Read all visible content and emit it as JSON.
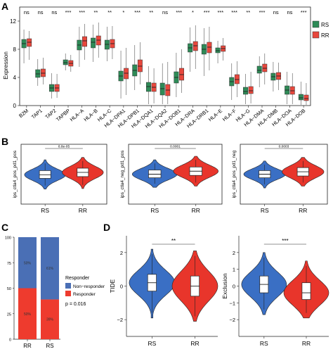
{
  "panels": {
    "A": "A",
    "B": "B",
    "C": "C",
    "D": "D"
  },
  "colors": {
    "rs_box": "#2e8b57",
    "rr_box": "#e8473c",
    "rs_violin": "#3a6fc4",
    "rr_violin": "#e8352b",
    "non_responder": "#4a6fb5",
    "responder": "#ee3b2e"
  },
  "chart_data": [
    {
      "id": "A",
      "type": "box",
      "title": "",
      "xlabel": "",
      "ylabel": "Expression",
      "ylim": [
        0,
        14
      ],
      "yticks": [
        "0",
        "4",
        "8",
        "12"
      ],
      "ytick_values": [
        0,
        4,
        8,
        12
      ],
      "legend": {
        "position": "right",
        "entries": [
          "RS",
          "RR"
        ]
      },
      "categories": [
        "B2M",
        "TAP1",
        "TAP2",
        "TAPBP",
        "HLA−A",
        "HLA−B",
        "HLA−C",
        "HLA−DPA1",
        "HLA−DPB1",
        "HLA−DQA1",
        "HLA−DQA2",
        "HLA−DOB1",
        "HLA−DRA",
        "HLA−DRB1",
        "HLA−E",
        "HLA−F",
        "HLA−G",
        "HLA−DMA",
        "HLA−DMB",
        "HLA−DOA",
        "HLA−DOB"
      ],
      "significance": [
        "ns",
        "ns",
        "ns",
        "***",
        "***",
        "**",
        "**",
        "*",
        "***",
        "**",
        "ns",
        "***",
        "*",
        "***",
        "***",
        "***",
        "**",
        "***",
        "ns",
        "ns",
        "***"
      ],
      "series": [
        {
          "name": "RS",
          "stats": [
            [
              6.0,
              8.2,
              8.8,
              9.4,
              10.8
            ],
            [
              2.8,
              4.0,
              4.5,
              5.1,
              6.6
            ],
            [
              1.0,
              2.0,
              2.5,
              3.0,
              4.6
            ],
            [
              5.0,
              5.8,
              6.1,
              6.5,
              7.4
            ],
            [
              5.5,
              7.9,
              8.6,
              9.3,
              11.2
            ],
            [
              6.2,
              8.2,
              9.0,
              9.6,
              11.5
            ],
            [
              6.3,
              8.0,
              8.7,
              9.3,
              11.2
            ],
            [
              1.0,
              3.5,
              4.2,
              4.9,
              7.8
            ],
            [
              2.2,
              4.2,
              5.0,
              5.8,
              8.6
            ],
            [
              0.2,
              2.0,
              2.7,
              3.3,
              5.6
            ],
            [
              0.2,
              1.5,
              2.4,
              3.2,
              6.0
            ],
            [
              1.2,
              3.2,
              4.0,
              4.8,
              7.5
            ],
            [
              4.8,
              7.6,
              8.2,
              8.8,
              11.1
            ],
            [
              4.2,
              7.3,
              8.0,
              8.7,
              11.0
            ],
            [
              6.0,
              7.5,
              7.8,
              8.2,
              9.2
            ],
            [
              0.8,
              2.8,
              3.4,
              4.0,
              6.0
            ],
            [
              0.2,
              1.6,
              2.0,
              2.6,
              4.5
            ],
            [
              2.6,
              4.6,
              5.0,
              5.6,
              7.0
            ],
            [
              2.0,
              3.6,
              4.1,
              4.6,
              6.2
            ],
            [
              0.2,
              1.6,
              2.2,
              2.8,
              4.8
            ],
            [
              0.1,
              0.8,
              1.1,
              1.6,
              3.4
            ]
          ]
        },
        {
          "name": "RR",
          "stats": [
            [
              6.5,
              8.4,
              9.0,
              9.5,
              10.6
            ],
            [
              3.0,
              4.1,
              4.6,
              5.2,
              6.8
            ],
            [
              1.1,
              2.0,
              2.5,
              3.0,
              4.5
            ],
            [
              4.8,
              5.6,
              6.0,
              6.4,
              7.2
            ],
            [
              6.5,
              8.4,
              9.2,
              9.8,
              11.6
            ],
            [
              6.8,
              8.6,
              9.3,
              9.9,
              11.8
            ],
            [
              6.6,
              8.2,
              8.8,
              9.4,
              11.3
            ],
            [
              1.5,
              3.8,
              4.6,
              5.3,
              8.2
            ],
            [
              3.0,
              4.8,
              5.6,
              6.5,
              9.0
            ],
            [
              0.3,
              2.0,
              2.6,
              3.2,
              5.3
            ],
            [
              0.2,
              1.4,
              2.2,
              3.0,
              6.2
            ],
            [
              1.8,
              3.6,
              4.4,
              5.3,
              8.0
            ],
            [
              5.2,
              7.8,
              8.5,
              9.1,
              11.4
            ],
            [
              5.0,
              7.5,
              8.3,
              9.0,
              11.2
            ],
            [
              6.4,
              7.7,
              8.1,
              8.5,
              9.6
            ],
            [
              1.2,
              3.1,
              3.7,
              4.4,
              6.3
            ],
            [
              0.3,
              1.7,
              2.1,
              2.7,
              4.8
            ],
            [
              3.0,
              4.8,
              5.3,
              5.9,
              7.4
            ],
            [
              2.2,
              3.7,
              4.2,
              4.7,
              6.1
            ],
            [
              0.2,
              1.6,
              2.1,
              2.7,
              4.6
            ],
            [
              0.1,
              0.7,
              1.0,
              1.5,
              3.2
            ]
          ]
        }
      ]
    },
    {
      "id": "B",
      "type": "violin",
      "title": "",
      "subplots": [
        {
          "ylabel": "ips_ctla4_pos_pd1_pos",
          "pvalue": "8.8e-05",
          "ylim": [
            0,
            10
          ],
          "groups": [
            {
              "name": "RS",
              "stats": [
                2.5,
                4.3,
                4.9,
                5.6,
                7.4
              ]
            },
            {
              "name": "RR",
              "stats": [
                2.6,
                4.6,
                5.3,
                6.0,
                7.8
              ]
            }
          ]
        },
        {
          "ylabel": "ips_ctla4_neg_pd1_pos",
          "pvalue": "0.0001",
          "ylim": [
            0,
            10
          ],
          "groups": [
            {
              "name": "RS",
              "stats": [
                2.8,
                4.4,
                5.0,
                5.7,
                7.4
              ]
            },
            {
              "name": "RR",
              "stats": [
                3.0,
                4.8,
                5.5,
                6.2,
                8.0
              ]
            }
          ]
        },
        {
          "ylabel": "ips_ctla4_pos_pd1_neg",
          "pvalue": "0.0003",
          "ylim": [
            0,
            10
          ],
          "groups": [
            {
              "name": "RS",
              "stats": [
                2.7,
                4.4,
                5.0,
                5.6,
                7.2
              ]
            },
            {
              "name": "RR",
              "stats": [
                3.0,
                4.7,
                5.4,
                6.1,
                7.8
              ]
            }
          ]
        }
      ]
    },
    {
      "id": "C",
      "type": "bar",
      "stacked": true,
      "title": "",
      "xlabel": "",
      "ylabel": "",
      "ylim": [
        0,
        100
      ],
      "yticks": [
        "0",
        "25",
        "50",
        "75",
        "100"
      ],
      "ytick_values": [
        0,
        25,
        50,
        75,
        100
      ],
      "categories": [
        "RR",
        "RS"
      ],
      "legend": {
        "title": "Responder",
        "position": "right",
        "entries": [
          "Non−responder",
          "Responder"
        ]
      },
      "pvalue_text": "p = 0.016",
      "series": [
        {
          "name": "Responder",
          "values": [
            50,
            39
          ],
          "labels": [
            "50%",
            "39%"
          ]
        },
        {
          "name": "Non−responder",
          "values": [
            50,
            61
          ],
          "labels": [
            "50%",
            "61%"
          ]
        }
      ]
    },
    {
      "id": "D",
      "type": "violin",
      "title": "",
      "subplots": [
        {
          "ylabel": "TIDE",
          "significance": "**",
          "ylim": [
            -3,
            3
          ],
          "yticks": [
            "−2",
            "0",
            "2"
          ],
          "ytick_values": [
            -2,
            0,
            2
          ],
          "groups": [
            {
              "name": "RS",
              "stats": [
                -1.9,
                -0.3,
                0.2,
                0.7,
                2.2
              ]
            },
            {
              "name": "RR",
              "stats": [
                -2.1,
                -0.6,
                0.0,
                0.6,
                2.1
              ]
            }
          ]
        },
        {
          "ylabel": "Exclusion",
          "significance": "***",
          "ylim": [
            -3,
            3
          ],
          "yticks": [
            "−2",
            "−1",
            "0",
            "1",
            "2"
          ],
          "ytick_values": [
            -2,
            -1,
            0,
            1,
            2
          ],
          "groups": [
            {
              "name": "RS",
              "stats": [
                -1.7,
                -0.4,
                0.1,
                0.6,
                2.0
              ]
            },
            {
              "name": "RR",
              "stats": [
                -1.9,
                -0.8,
                -0.4,
                0.2,
                1.5
              ]
            }
          ]
        }
      ]
    }
  ]
}
